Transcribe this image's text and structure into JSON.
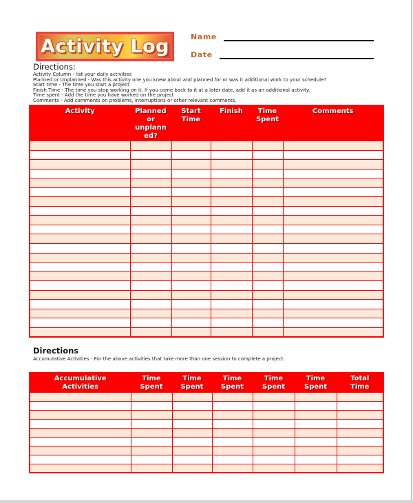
{
  "header": {
    "logo_text": "Activity Log",
    "name_label": "Name",
    "date_label": "Date"
  },
  "directions_top": {
    "title": "Directions:",
    "lines": [
      "Activity Column - list your daily activities",
      "Planned or Unplanned - Was this activity one you knew about and planned for or was it additional work to your schedule?",
      "Start time - The time you start a project",
      "Finish Time - The time you stop working on it.  If you come back to it at a later date, add it as an additional activity.",
      "Time spent - Add the time you have worked on the project",
      "Comments - Add comments on problems, interruptions or other relevant comments."
    ]
  },
  "activity_table": {
    "headers": [
      "Activity",
      "Planned or unplanned?",
      "Start Time",
      "Finish",
      "Time Spent",
      "Comments"
    ],
    "empty_row_count": 21
  },
  "directions_bottom": {
    "title": "Directions",
    "lines": [
      "Accumulative Activities - For the above activities that take more than one session to complete a project."
    ]
  },
  "accumulative_table": {
    "headers": [
      "Accumulative Activities",
      "Time Spent",
      "Time Spent",
      "Time Spent",
      "Time Spent",
      "Time Spent",
      "Total Time"
    ],
    "empty_row_count": 9
  },
  "colors": {
    "table_red": "#FF0000",
    "row_stripe": "#FDE9D9",
    "label_orange": "#C0662B"
  }
}
